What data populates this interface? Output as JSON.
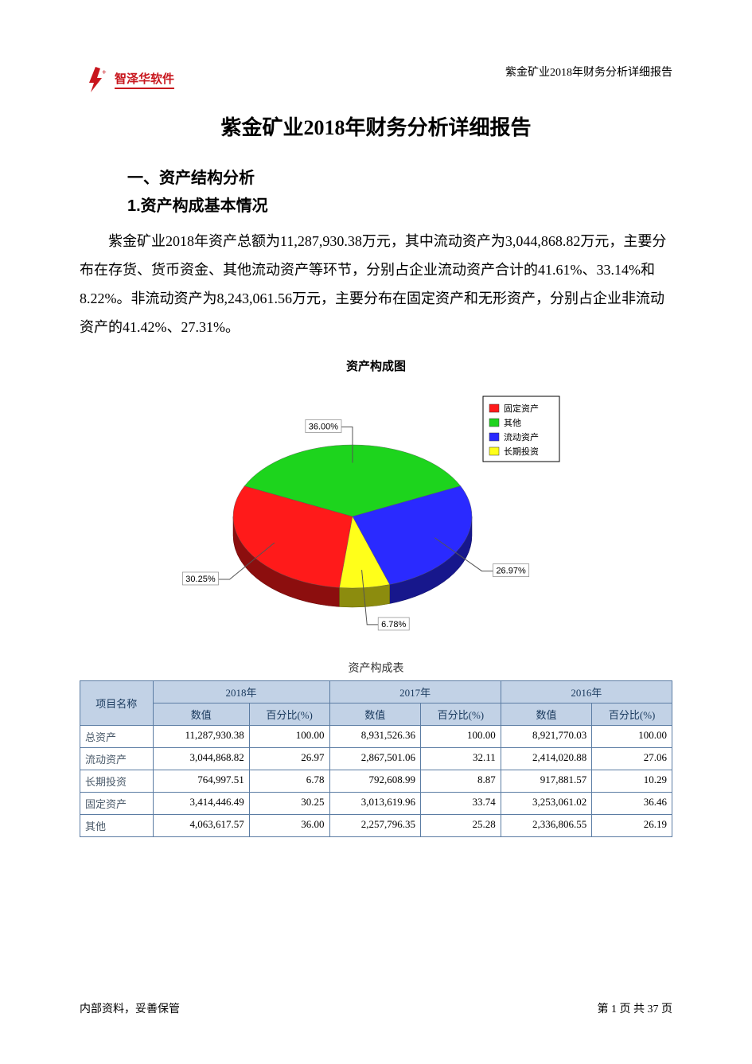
{
  "header": {
    "logo_text": "智泽华软件",
    "logo_color": "#c8161d",
    "right_text": "紫金矿业2018年财务分析详细报告"
  },
  "title": "紫金矿业2018年财务分析详细报告",
  "section1": "一、资产结构分析",
  "section1_1": "1.资产构成基本情况",
  "paragraph": "紫金矿业2018年资产总额为11,287,930.38万元，其中流动资产为3,044,868.82万元，主要分布在存货、货币资金、其他流动资产等环节，分别占企业流动资产合计的41.61%、33.14%和8.22%。非流动资产为8,243,061.56万元，主要分布在固定资产和无形资产，分别占企业非流动资产的41.42%、27.31%。",
  "chart": {
    "title": "资产构成图",
    "type": "pie-3d",
    "background": "#ffffff",
    "slices": [
      {
        "label": "固定资产",
        "value": 30.25,
        "color": "#ff1a1a",
        "label_text": "30.25%"
      },
      {
        "label": "其他",
        "value": 36.0,
        "color": "#1dd41d",
        "label_text": "36.00%"
      },
      {
        "label": "流动资产",
        "value": 26.97,
        "color": "#2a2aff",
        "label_text": "26.97%"
      },
      {
        "label": "长期投资",
        "value": 6.78,
        "color": "#ffff1a",
        "label_text": "6.78%"
      }
    ],
    "legend": {
      "border_color": "#000000",
      "items": [
        {
          "swatch": "#ff1a1a",
          "text": "固定资产"
        },
        {
          "swatch": "#1dd41d",
          "text": "其他"
        },
        {
          "swatch": "#2a2aff",
          "text": "流动资产"
        },
        {
          "swatch": "#ffff1a",
          "text": "长期投资"
        }
      ]
    }
  },
  "table": {
    "caption": "资产构成表",
    "header_bg": "#c2d2e6",
    "header_fg": "#1a3a5e",
    "border_color": "#5b7ca3",
    "col_project": "项目名称",
    "years": [
      "2018年",
      "2017年",
      "2016年"
    ],
    "subcols": [
      "数值",
      "百分比(%)"
    ],
    "rows": [
      {
        "name": "总资产",
        "cells": [
          "11,287,930.38",
          "100.00",
          "8,931,526.36",
          "100.00",
          "8,921,770.03",
          "100.00"
        ]
      },
      {
        "name": "流动资产",
        "cells": [
          "3,044,868.82",
          "26.97",
          "2,867,501.06",
          "32.11",
          "2,414,020.88",
          "27.06"
        ]
      },
      {
        "name": "长期投资",
        "cells": [
          "764,997.51",
          "6.78",
          "792,608.99",
          "8.87",
          "917,881.57",
          "10.29"
        ]
      },
      {
        "name": "固定资产",
        "cells": [
          "3,414,446.49",
          "30.25",
          "3,013,619.96",
          "33.74",
          "3,253,061.02",
          "36.46"
        ]
      },
      {
        "name": "其他",
        "cells": [
          "4,063,617.57",
          "36.00",
          "2,257,796.35",
          "25.28",
          "2,336,806.55",
          "26.19"
        ]
      }
    ]
  },
  "footer": {
    "left": "内部资料，妥善保管",
    "right": "第 1 页   共 37 页"
  }
}
